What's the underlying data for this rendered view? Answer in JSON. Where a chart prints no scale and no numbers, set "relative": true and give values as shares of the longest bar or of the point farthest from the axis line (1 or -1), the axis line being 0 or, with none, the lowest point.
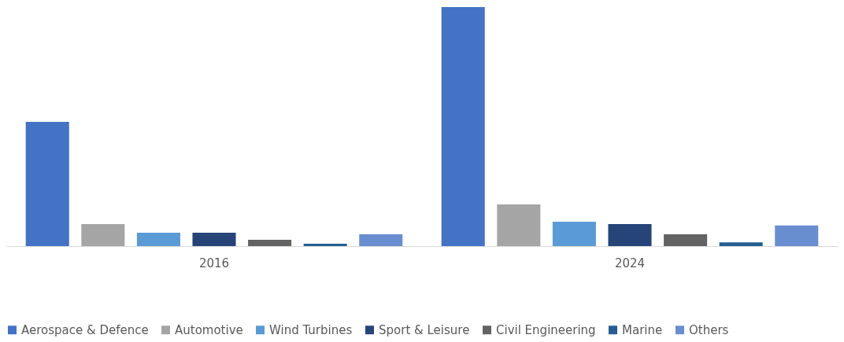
{
  "chart_data": {
    "type": "bar",
    "relative": true,
    "categories": [
      "2016",
      "2024"
    ],
    "legend": "bottom",
    "grid": false,
    "series": [
      {
        "name": "Aerospace & Defence",
        "color": "#4472c4",
        "values": [
          0.52,
          1
        ]
      },
      {
        "name": "Automotive",
        "color": "#a5a5a5",
        "values": [
          0.092,
          0.174
        ]
      },
      {
        "name": "Wind Turbines",
        "color": "#5b9bd5",
        "values": [
          0.056,
          0.102
        ]
      },
      {
        "name": "Sport & Leisure",
        "color": "#264478",
        "values": [
          0.056,
          0.092
        ]
      },
      {
        "name": "Civil Engineering",
        "color": "#636363",
        "values": [
          0.026,
          0.049
        ]
      },
      {
        "name": "Marine",
        "color": "#255e91",
        "values": [
          0.01,
          0.016
        ]
      },
      {
        "name": "Others",
        "color": "#698ed0",
        "values": [
          0.049,
          0.086
        ]
      }
    ]
  }
}
